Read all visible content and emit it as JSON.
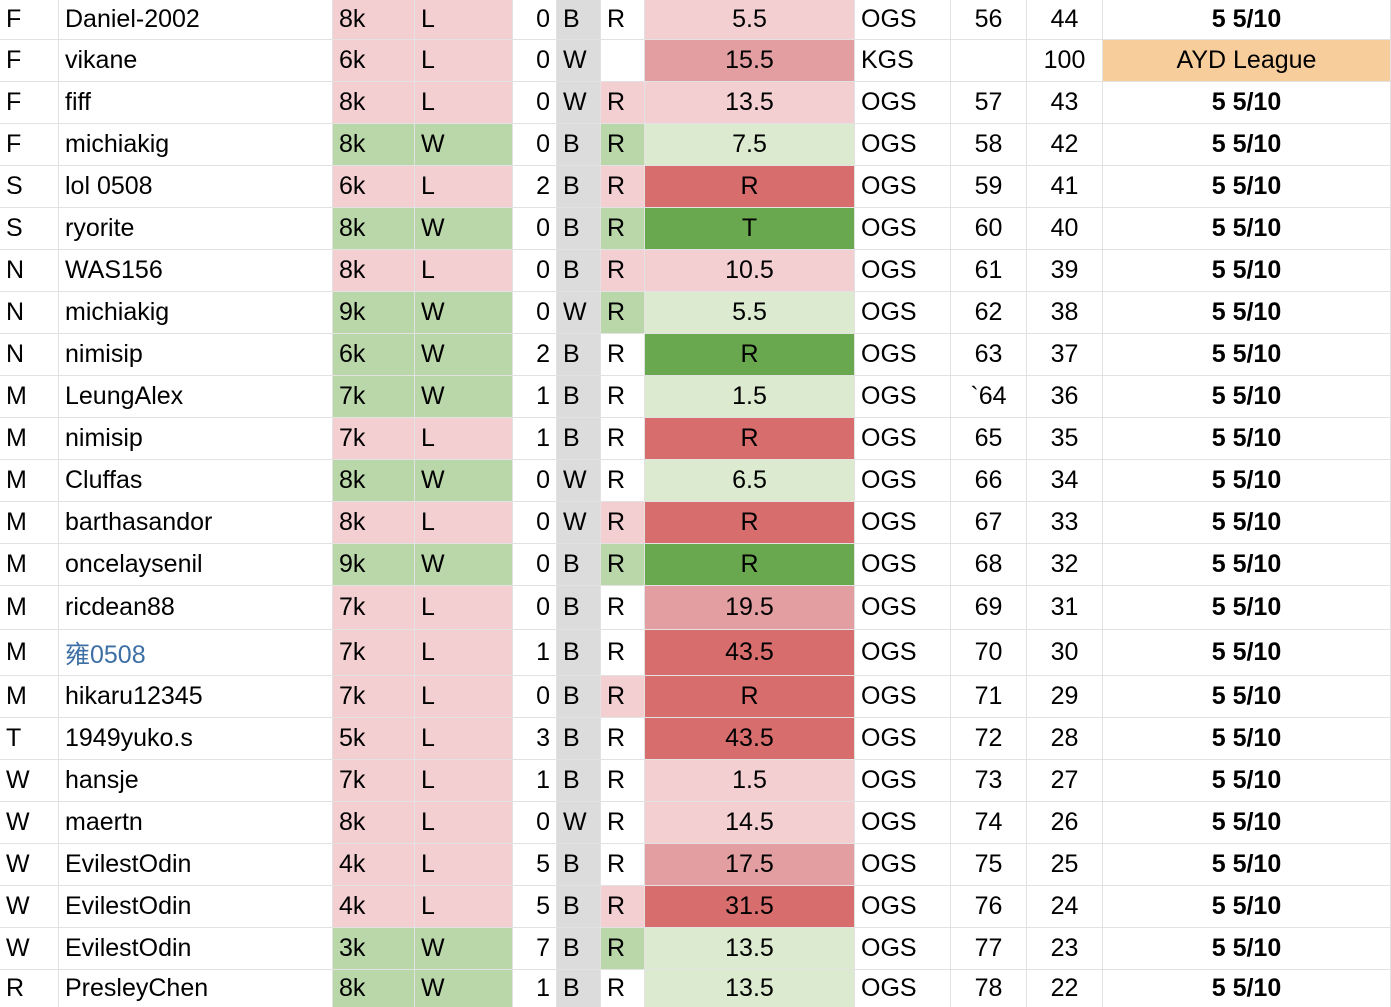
{
  "colors": {
    "pink": "#f3cfd2",
    "lightgreen": "#b9d7a8",
    "mediumred": "#e29ea0",
    "red": "#d76d6d",
    "darkgreen": "#6aa84f",
    "palegreen": "#dceacf",
    "orange": "#f7cd9c",
    "gray": "#dcdcdc",
    "link": "#3d6fa5"
  },
  "rows": [
    {
      "div": "F",
      "name": "Daniel-2002",
      "rank": "8k",
      "result": "L",
      "handicap": "0",
      "color": "B",
      "rated": "R",
      "score": "5.5",
      "server": "OGS",
      "num": "56",
      "remain": "44",
      "date": "5 5/10",
      "cc": "pink",
      "rc": "pink",
      "ratedc": "white",
      "sc": "pink",
      "datec": "white"
    },
    {
      "div": "F",
      "name": "vikane",
      "rank": "6k",
      "result": "L",
      "handicap": "0",
      "color": "W",
      "rated": "",
      "score": "15.5",
      "server": "KGS",
      "num": "",
      "remain": "100",
      "date": "AYD League",
      "cc": "pink",
      "rc": "pink",
      "ratedc": "white",
      "sc": "mediumred",
      "datec": "orange"
    },
    {
      "div": "F",
      "name": "fiff",
      "rank": "8k",
      "result": "L",
      "handicap": "0",
      "color": "W",
      "rated": "R",
      "score": "13.5",
      "server": "OGS",
      "num": "57",
      "remain": "43",
      "date": "5 5/10",
      "cc": "pink",
      "rc": "pink",
      "ratedc": "pink",
      "sc": "pink",
      "datec": "white"
    },
    {
      "div": "F",
      "name": "michiakig",
      "rank": "8k",
      "result": "W",
      "handicap": "0",
      "color": "B",
      "rated": "R",
      "score": "7.5",
      "server": "OGS",
      "num": "58",
      "remain": "42",
      "date": "5 5/10",
      "cc": "lightgreen",
      "rc": "lightgreen",
      "ratedc": "lightgreen",
      "sc": "palegreen",
      "datec": "white"
    },
    {
      "div": "S",
      "name": "lol 0508",
      "rank": "6k",
      "result": "L",
      "handicap": "2",
      "color": "B",
      "rated": "R",
      "score": "R",
      "server": "OGS",
      "num": "59",
      "remain": "41",
      "date": "5 5/10",
      "cc": "pink",
      "rc": "pink",
      "ratedc": "pink",
      "sc": "red",
      "datec": "white"
    },
    {
      "div": "S",
      "name": "ryorite",
      "rank": "8k",
      "result": "W",
      "handicap": "0",
      "color": "B",
      "rated": "R",
      "score": "T",
      "server": "OGS",
      "num": "60",
      "remain": "40",
      "date": "5 5/10",
      "cc": "lightgreen",
      "rc": "lightgreen",
      "ratedc": "lightgreen",
      "sc": "darkgreen",
      "datec": "white"
    },
    {
      "div": "N",
      "name": "WAS156",
      "rank": "8k",
      "result": "L",
      "handicap": "0",
      "color": "B",
      "rated": "R",
      "score": "10.5",
      "server": "OGS",
      "num": "61",
      "remain": "39",
      "date": "5 5/10",
      "cc": "pink",
      "rc": "pink",
      "ratedc": "pink",
      "sc": "pink",
      "datec": "white"
    },
    {
      "div": "N",
      "name": "michiakig",
      "rank": "9k",
      "result": "W",
      "handicap": "0",
      "color": "W",
      "rated": "R",
      "score": "5.5",
      "server": "OGS",
      "num": "62",
      "remain": "38",
      "date": "5 5/10",
      "cc": "lightgreen",
      "rc": "lightgreen",
      "ratedc": "lightgreen",
      "sc": "palegreen",
      "datec": "white"
    },
    {
      "div": "N",
      "name": "nimisip",
      "rank": "6k",
      "result": "W",
      "handicap": "2",
      "color": "B",
      "rated": "R",
      "score": "R",
      "server": "OGS",
      "num": "63",
      "remain": "37",
      "date": "5 5/10",
      "cc": "lightgreen",
      "rc": "lightgreen",
      "ratedc": "white",
      "sc": "darkgreen",
      "datec": "white"
    },
    {
      "div": "M",
      "name": "LeungAlex",
      "rank": "7k",
      "result": "W",
      "handicap": "1",
      "color": "B",
      "rated": "R",
      "score": "1.5",
      "server": "OGS",
      "num": "`64",
      "remain": "36",
      "date": "5 5/10",
      "cc": "lightgreen",
      "rc": "lightgreen",
      "ratedc": "white",
      "sc": "palegreen",
      "datec": "white"
    },
    {
      "div": "M",
      "name": "nimisip",
      "rank": "7k",
      "result": "L",
      "handicap": "1",
      "color": "B",
      "rated": "R",
      "score": "R",
      "server": "OGS",
      "num": "65",
      "remain": "35",
      "date": "5 5/10",
      "cc": "pink",
      "rc": "pink",
      "ratedc": "white",
      "sc": "red",
      "datec": "white"
    },
    {
      "div": "M",
      "name": "Cluffas",
      "rank": "8k",
      "result": "W",
      "handicap": "0",
      "color": "W",
      "rated": "R",
      "score": "6.5",
      "server": "OGS",
      "num": "66",
      "remain": "34",
      "date": "5 5/10",
      "cc": "lightgreen",
      "rc": "lightgreen",
      "ratedc": "white",
      "sc": "palegreen",
      "datec": "white"
    },
    {
      "div": "M",
      "name": "barthasandor",
      "rank": "8k",
      "result": "L",
      "handicap": "0",
      "color": "W",
      "rated": "R",
      "score": "R",
      "server": "OGS",
      "num": "67",
      "remain": "33",
      "date": "5 5/10",
      "cc": "pink",
      "rc": "pink",
      "ratedc": "pink",
      "sc": "red",
      "datec": "white"
    },
    {
      "div": "M",
      "name": "oncelaysenil",
      "rank": "9k",
      "result": "W",
      "handicap": "0",
      "color": "B",
      "rated": "R",
      "score": "R",
      "server": "OGS",
      "num": "68",
      "remain": "32",
      "date": "5 5/10",
      "cc": "lightgreen",
      "rc": "lightgreen",
      "ratedc": "lightgreen",
      "sc": "darkgreen",
      "datec": "white"
    },
    {
      "div": "M",
      "name": "ricdean88",
      "rank": "7k",
      "result": "L",
      "handicap": "0",
      "color": "B",
      "rated": "R",
      "score": "19.5",
      "server": "OGS",
      "num": "69",
      "remain": "31",
      "date": "5 5/10",
      "cc": "pink",
      "rc": "pink",
      "ratedc": "white",
      "sc": "mediumred",
      "datec": "white"
    },
    {
      "div": "M",
      "name": "雍0508",
      "rank": "7k",
      "result": "L",
      "handicap": "1",
      "color": "B",
      "rated": "R",
      "score": "43.5",
      "server": "OGS",
      "num": "70",
      "remain": "30",
      "date": "5 5/10",
      "cc": "pink",
      "rc": "pink",
      "ratedc": "white",
      "sc": "red",
      "datec": "white",
      "link": true
    },
    {
      "div": "M",
      "name": "hikaru12345",
      "rank": "7k",
      "result": "L",
      "handicap": "0",
      "color": "B",
      "rated": "R",
      "score": "R",
      "server": "OGS",
      "num": "71",
      "remain": "29",
      "date": "5 5/10",
      "cc": "pink",
      "rc": "pink",
      "ratedc": "pink",
      "sc": "red",
      "datec": "white"
    },
    {
      "div": "T",
      "name": "1949yuko.s",
      "rank": "5k",
      "result": "L",
      "handicap": "3",
      "color": "B",
      "rated": "R",
      "score": "43.5",
      "server": "OGS",
      "num": "72",
      "remain": "28",
      "date": "5 5/10",
      "cc": "pink",
      "rc": "pink",
      "ratedc": "white",
      "sc": "red",
      "datec": "white"
    },
    {
      "div": "W",
      "name": "hansje",
      "rank": "7k",
      "result": "L",
      "handicap": "1",
      "color": "B",
      "rated": "R",
      "score": "1.5",
      "server": "OGS",
      "num": "73",
      "remain": "27",
      "date": "5 5/10",
      "cc": "pink",
      "rc": "pink",
      "ratedc": "white",
      "sc": "pink",
      "datec": "white"
    },
    {
      "div": "W",
      "name": "maertn",
      "rank": "8k",
      "result": "L",
      "handicap": "0",
      "color": "W",
      "rated": "R",
      "score": "14.5",
      "server": "OGS",
      "num": "74",
      "remain": "26",
      "date": "5 5/10",
      "cc": "pink",
      "rc": "pink",
      "ratedc": "white",
      "sc": "pink",
      "datec": "white"
    },
    {
      "div": "W",
      "name": "EvilestOdin",
      "rank": "4k",
      "result": "L",
      "handicap": "5",
      "color": "B",
      "rated": "R",
      "score": "17.5",
      "server": "OGS",
      "num": "75",
      "remain": "25",
      "date": "5 5/10",
      "cc": "pink",
      "rc": "pink",
      "ratedc": "white",
      "sc": "mediumred",
      "datec": "white"
    },
    {
      "div": "W",
      "name": "EvilestOdin",
      "rank": "4k",
      "result": "L",
      "handicap": "5",
      "color": "B",
      "rated": "R",
      "score": "31.5",
      "server": "OGS",
      "num": "76",
      "remain": "24",
      "date": "5 5/10",
      "cc": "pink",
      "rc": "pink",
      "ratedc": "pink",
      "sc": "red",
      "datec": "white"
    },
    {
      "div": "W",
      "name": "EvilestOdin",
      "rank": "3k",
      "result": "W",
      "handicap": "7",
      "color": "B",
      "rated": "R",
      "score": "13.5",
      "server": "OGS",
      "num": "77",
      "remain": "23",
      "date": "5 5/10",
      "cc": "lightgreen",
      "rc": "lightgreen",
      "ratedc": "lightgreen",
      "sc": "palegreen",
      "datec": "white"
    },
    {
      "div": "R",
      "name": "PresleyChen",
      "rank": "8k",
      "result": "W",
      "handicap": "1",
      "color": "B",
      "rated": "R",
      "score": "13.5",
      "server": "OGS",
      "num": "78",
      "remain": "22",
      "date": "5 5/10",
      "cc": "lightgreen",
      "rc": "lightgreen",
      "ratedc": "white",
      "sc": "palegreen",
      "datec": "white"
    }
  ]
}
